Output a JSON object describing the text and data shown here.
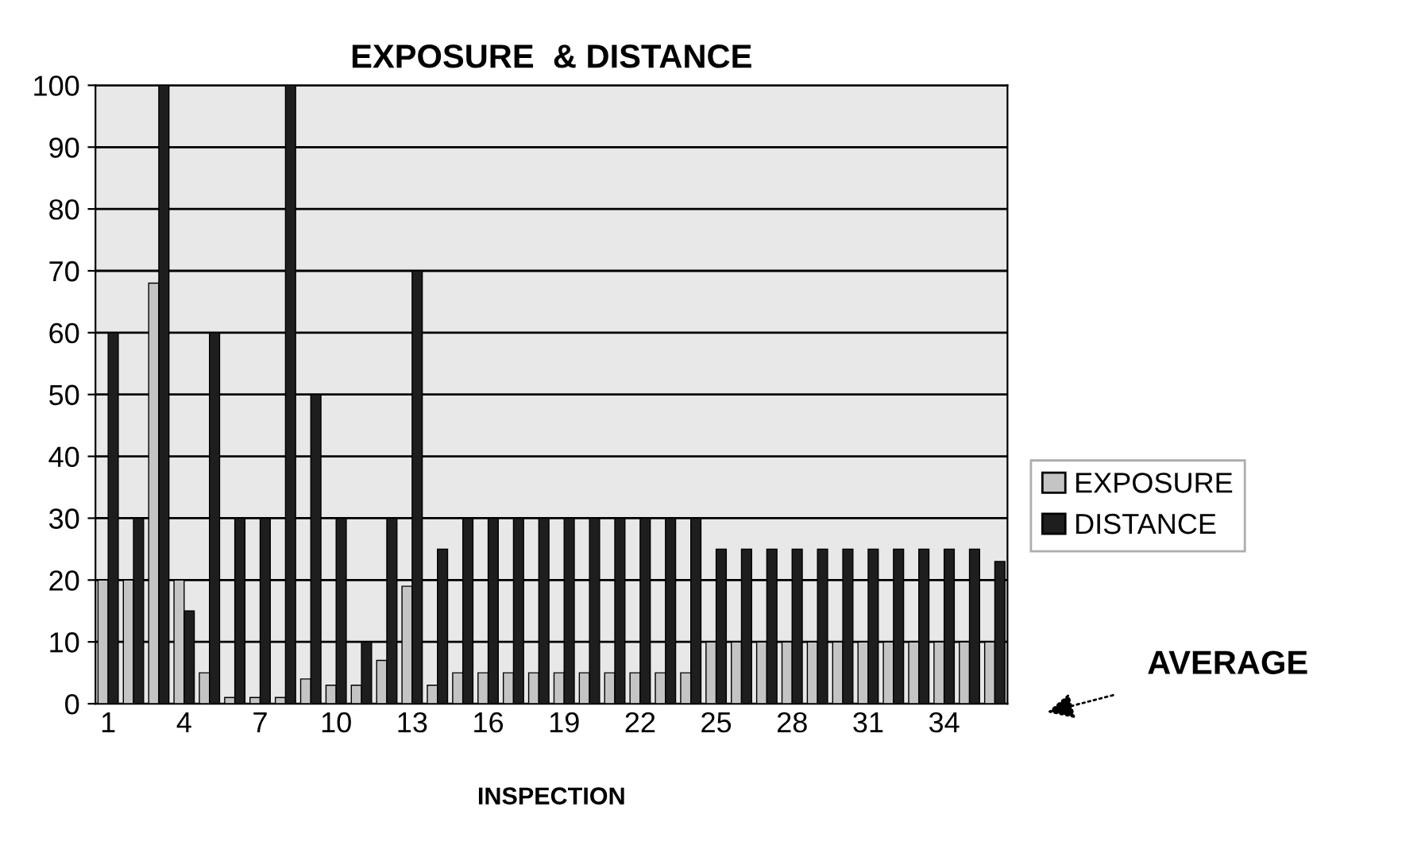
{
  "chart_data": {
    "type": "bar",
    "title": "EXPOSURE  & DISTANCE",
    "xlabel": "INSPECTION",
    "categories": [
      "1",
      null,
      null,
      "4",
      null,
      null,
      "7",
      null,
      null,
      "10",
      null,
      null,
      "13",
      null,
      null,
      "16",
      null,
      null,
      "19",
      null,
      null,
      "22",
      null,
      null,
      "25",
      null,
      null,
      "28",
      null,
      null,
      "31",
      null,
      null,
      "34",
      null,
      null
    ],
    "series": [
      {
        "name": "EXPOSURE",
        "color": "#c4c4c4",
        "values": [
          20,
          20,
          68,
          20,
          5,
          1,
          1,
          1,
          4,
          3,
          3,
          7,
          19,
          3,
          5,
          5,
          5,
          5,
          5,
          5,
          5,
          5,
          5,
          5,
          10,
          10,
          10,
          10,
          10,
          10,
          10,
          10,
          10,
          10,
          10,
          10
        ]
      },
      {
        "name": "DISTANCE",
        "color": "#1e1e1e",
        "values": [
          60,
          30,
          100,
          15,
          60,
          30,
          30,
          100,
          50,
          30,
          10,
          30,
          70,
          25,
          30,
          30,
          30,
          30,
          30,
          30,
          30,
          30,
          30,
          30,
          25,
          25,
          25,
          25,
          25,
          25,
          25,
          25,
          25,
          25,
          25,
          23
        ]
      }
    ],
    "ylim": [
      0,
      100
    ],
    "yticks": [
      0,
      10,
      20,
      30,
      40,
      50,
      60,
      70,
      80,
      90,
      100
    ],
    "grid": "y",
    "legend": "right",
    "annotations": [
      "AVERAGE"
    ]
  }
}
